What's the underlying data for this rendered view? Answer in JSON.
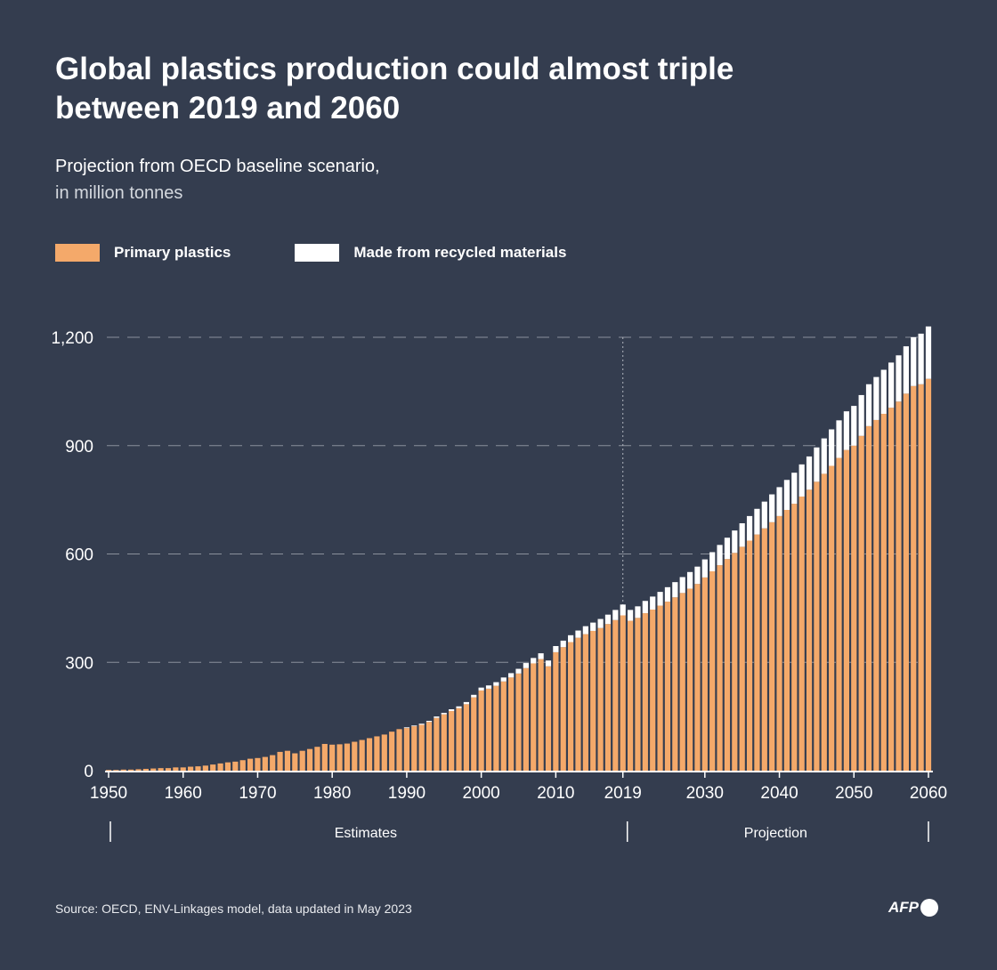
{
  "chart_data": {
    "type": "bar",
    "stacked": true,
    "title": "Global plastics production could almost triple between 2019 and 2060",
    "subtitle": "Projection from OECD baseline scenario,",
    "subtitle_unit": "in million tonnes",
    "x_start": 1950,
    "x_end": 2060,
    "x_ticks": [
      "1950",
      "1960",
      "1970",
      "1980",
      "1990",
      "2000",
      "2010",
      "2019",
      "2030",
      "2040",
      "2050",
      "2060"
    ],
    "y_ticks": [
      "0",
      "300",
      "600",
      "900",
      "1,200"
    ],
    "ylim": [
      0,
      1230
    ],
    "grid": "horizontal dashed",
    "legend_position": "top-left",
    "marker_year": 2019,
    "period_labels": {
      "estimates": "Estimates",
      "projection": "Projection"
    },
    "series": [
      {
        "name": "Primary plastics",
        "color": "#f4a96a",
        "values": [
          2,
          2,
          3,
          3,
          4,
          5,
          6,
          7,
          7,
          9,
          9,
          11,
          12,
          14,
          17,
          20,
          23,
          25,
          29,
          33,
          35,
          38,
          43,
          52,
          55,
          48,
          55,
          60,
          66,
          74,
          72,
          73,
          75,
          80,
          85,
          90,
          95,
          100,
          108,
          115,
          118,
          123,
          127,
          135,
          146,
          156,
          165,
          173,
          184,
          203,
          222,
          227,
          235,
          247,
          258,
          269,
          284,
          297,
          309,
          289,
          328,
          342,
          356,
          368,
          378,
          387,
          395,
          406,
          417,
          430,
          415,
          423,
          436,
          446,
          457,
          468,
          480,
          492,
          504,
          517,
          535,
          552,
          569,
          586,
          603,
          620,
          637,
          654,
          671,
          688,
          705,
          722,
          739,
          759,
          778,
          800,
          822,
          844,
          866,
          888,
          900,
          927,
          954,
          971,
          988,
          1005,
          1022,
          1044,
          1065,
          1070,
          1085
        ]
      },
      {
        "name": "Made from recycled materials",
        "color": "#ffffff",
        "values": [
          0,
          0,
          0,
          0,
          0,
          0,
          0,
          0,
          0,
          0,
          0,
          0,
          0,
          0,
          0,
          0,
          0,
          0,
          0,
          0,
          0,
          0,
          0,
          0,
          0,
          0,
          0,
          0,
          0,
          0,
          0,
          0,
          0,
          0,
          0,
          0,
          0,
          0,
          0,
          0,
          2,
          2,
          3,
          3,
          4,
          4,
          5,
          5,
          6,
          7,
          8,
          9,
          10,
          11,
          12,
          13,
          14,
          15,
          16,
          16,
          17,
          18,
          19,
          20,
          22,
          23,
          25,
          26,
          28,
          30,
          30,
          32,
          34,
          36,
          38,
          40,
          42,
          44,
          46,
          48,
          50,
          53,
          56,
          59,
          62,
          65,
          68,
          71,
          74,
          77,
          80,
          83,
          86,
          89,
          92,
          95,
          98,
          101,
          104,
          107,
          110,
          113,
          116,
          119,
          122,
          125,
          128,
          131,
          135,
          140,
          145
        ]
      }
    ]
  },
  "source": "Source: OECD, ENV-Linkages model, data updated in May 2023",
  "logo": "AFP"
}
